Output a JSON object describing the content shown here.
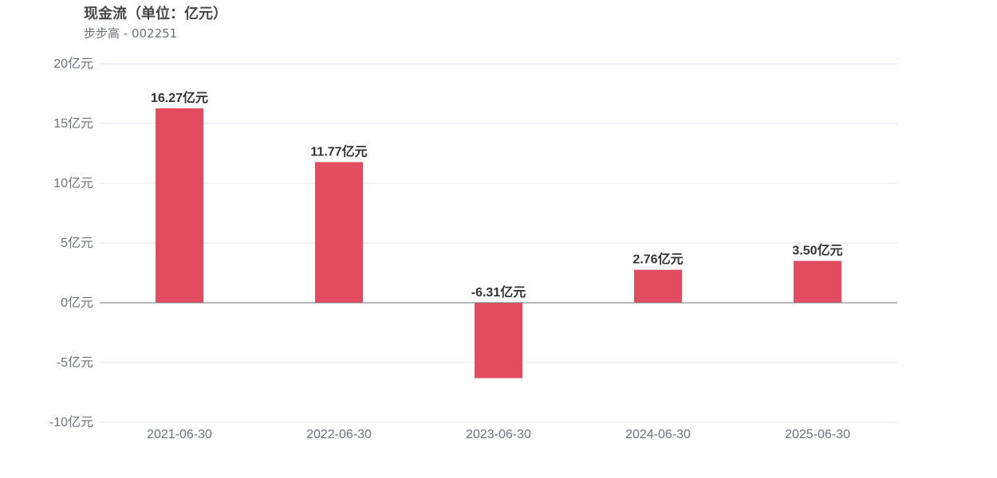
{
  "header": {
    "title": "现金流（单位：亿元）",
    "subtitle": "步步高 - 002251"
  },
  "colors": {
    "bar": "#e34b60",
    "grid": "#e0e6f1",
    "zero_line": "#6e7079",
    "axis_text": "#6e7079",
    "label_text": "#333333"
  },
  "chart_data": {
    "type": "bar",
    "title": "现金流（单位：亿元）",
    "subtitle": "步步高 - 002251",
    "categories": [
      "2021-06-30",
      "2022-06-30",
      "2023-06-30",
      "2024-06-30",
      "2025-06-30"
    ],
    "values": [
      16.27,
      11.77,
      -6.31,
      2.76,
      3.5
    ],
    "value_labels": [
      "16.27亿元",
      "11.77亿元",
      "-6.31亿元",
      "2.76亿元",
      "3.50亿元"
    ],
    "y_ticks": [
      20,
      15,
      10,
      5,
      0,
      -5,
      -10
    ],
    "y_tick_labels": [
      "20亿元",
      "15亿元",
      "10亿元",
      "5亿元",
      "0亿元",
      "-5亿元",
      "-10亿元"
    ],
    "ylim": [
      -10,
      20
    ],
    "xlabel": "",
    "ylabel": "",
    "grid": true,
    "legend": "none"
  }
}
